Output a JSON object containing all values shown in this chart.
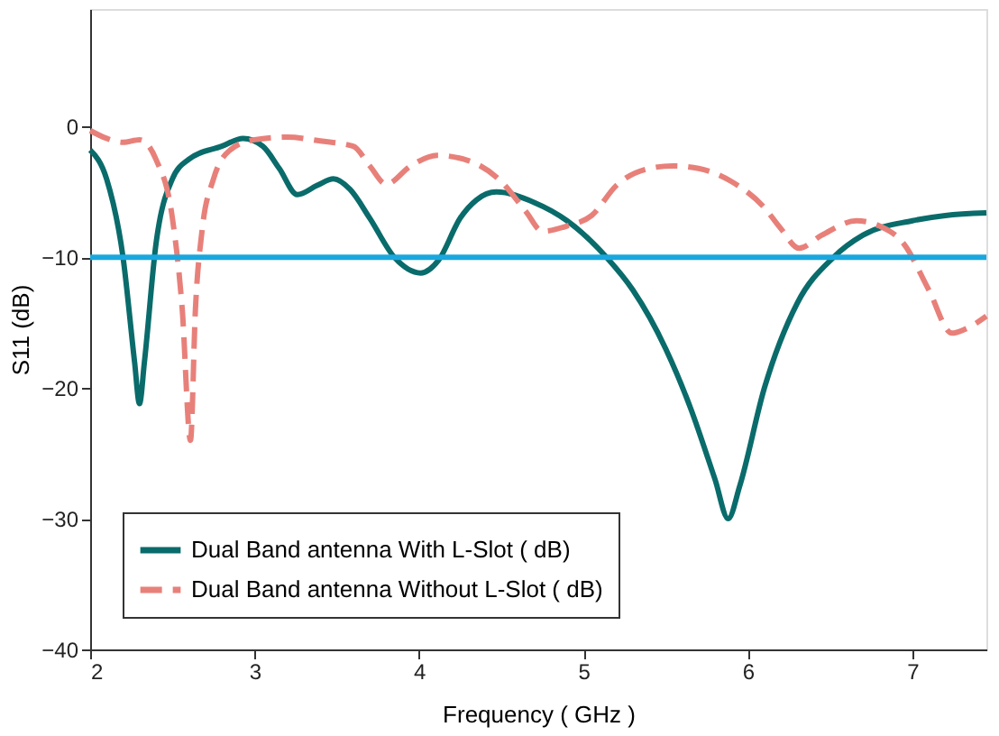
{
  "chart_data": {
    "type": "line",
    "xlabel": "Frequency ( GHz )",
    "ylabel": "S11 (dB)",
    "xlim": [
      2,
      7.45
    ],
    "ylim": [
      -40,
      9
    ],
    "xticks": [
      2,
      3,
      4,
      5,
      6,
      7
    ],
    "yticks": [
      -40,
      -30,
      -20,
      -10,
      0
    ],
    "grid": false,
    "legend": "bottom left",
    "marker": "none",
    "series": [
      {
        "name": "Dual Band antenna With L-Slot ( dB)",
        "color": "#0a6b6b",
        "line_style": "solid",
        "x": [
          2.0,
          2.1,
          2.2,
          2.27,
          2.3,
          2.33,
          2.4,
          2.5,
          2.6,
          2.8,
          2.93,
          3.05,
          3.15,
          3.26,
          3.38,
          3.48,
          3.58,
          3.7,
          3.85,
          4.01,
          4.12,
          4.25,
          4.35,
          4.47,
          4.7,
          4.9,
          5.14,
          5.3,
          5.5,
          5.65,
          5.8,
          5.88,
          5.95,
          6.1,
          6.3,
          6.52,
          6.7,
          7.0,
          7.2,
          7.45
        ],
        "values": [
          -1.8,
          -4,
          -10,
          -18,
          -21.2,
          -18,
          -9,
          -4,
          -2.5,
          -1.5,
          -0.9,
          -1.5,
          -3.2,
          -5.2,
          -4.5,
          -4,
          -4.8,
          -7,
          -10,
          -11.2,
          -10.2,
          -7,
          -5.6,
          -5,
          -5.8,
          -7.2,
          -10,
          -12.5,
          -17,
          -21.5,
          -27,
          -30,
          -27.5,
          -20,
          -13.5,
          -10,
          -8.3,
          -7.2,
          -6.8,
          -6.6
        ]
      },
      {
        "name": "Dual Band antenna Without L-Slot ( dB)",
        "color": "#e8807a",
        "line_style": "dashed",
        "x": [
          2.0,
          2.1,
          2.2,
          2.3,
          2.4,
          2.5,
          2.56,
          2.61,
          2.64,
          2.68,
          2.75,
          2.85,
          3.0,
          3.2,
          3.4,
          3.6,
          3.7,
          3.8,
          3.95,
          4.11,
          4.3,
          4.5,
          4.65,
          4.75,
          4.9,
          5.05,
          5.2,
          5.4,
          5.54,
          5.7,
          5.9,
          6.1,
          6.2,
          6.31,
          6.45,
          6.66,
          6.8,
          6.95,
          7.1,
          7.24,
          7.32,
          7.45
        ],
        "values": [
          -0.3,
          -0.9,
          -1.2,
          -1.0,
          -2.5,
          -7,
          -14,
          -24,
          -14,
          -8,
          -4,
          -1.8,
          -1.0,
          -0.8,
          -1.1,
          -1.5,
          -3,
          -4.4,
          -3,
          -2.2,
          -2.6,
          -4.2,
          -6.5,
          -8,
          -7.6,
          -6.8,
          -4.5,
          -3.2,
          -3,
          -3.2,
          -4.2,
          -6.2,
          -7.8,
          -9.3,
          -8.3,
          -7.2,
          -7.6,
          -9,
          -12.5,
          -15.8,
          -15.5,
          -14.5
        ]
      }
    ],
    "ref_lines": [
      {
        "axis": "y",
        "value": -10,
        "label": null,
        "color": "#1aa7de",
        "line_style": "solid"
      }
    ]
  }
}
